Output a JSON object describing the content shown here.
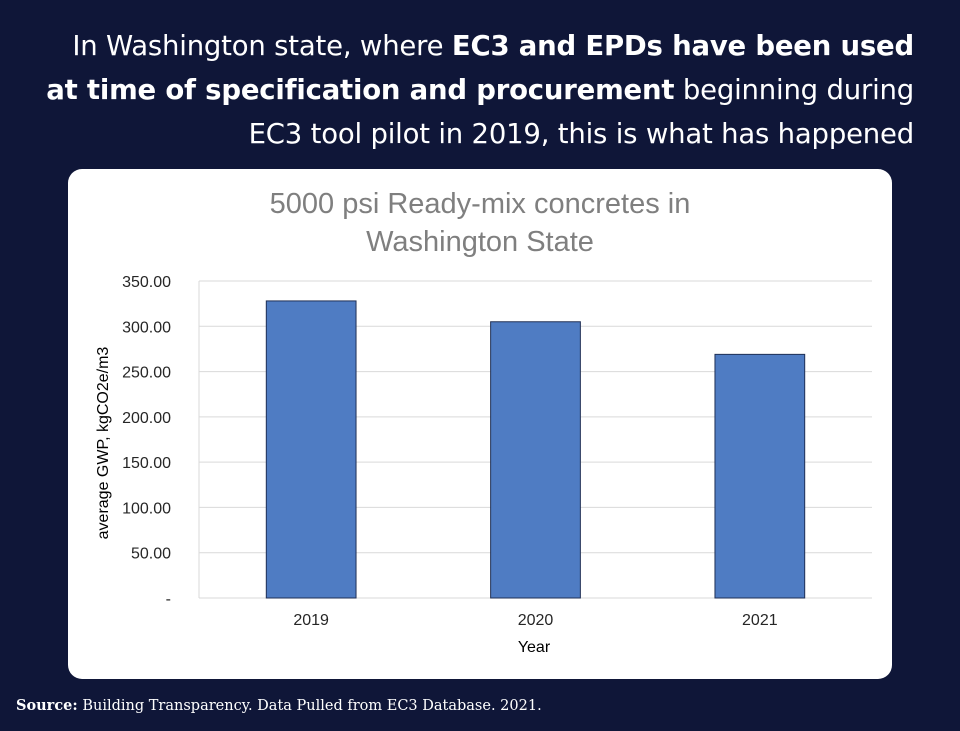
{
  "headline": {
    "part1": "In Washington state, where ",
    "bold1": "EC3 and EPDs have been used at time of specification and procurement",
    "part2": " beginning during EC3 tool pilot in 2019, this is what has happened"
  },
  "colors": {
    "background": "#0f1638",
    "bar_fill": "#4f7cc3",
    "bar_stroke": "#1f2f55",
    "gridline": "#d9d9d9",
    "title": "#7f7f7f"
  },
  "chart_data": {
    "type": "bar",
    "title_lines": [
      "5000 psi Ready-mix concretes in",
      "Washington State"
    ],
    "categories": [
      "2019",
      "2020",
      "2021"
    ],
    "values": [
      328,
      305,
      269
    ],
    "xlabel": "Year",
    "ylabel": "average GWP, kgCO2e/m3",
    "ylim": [
      0,
      350
    ],
    "yticks": [
      0,
      50,
      100,
      150,
      200,
      250,
      300,
      350
    ],
    "ytick_labels": [
      "-",
      "50.00",
      "100.00",
      "150.00",
      "200.00",
      "250.00",
      "300.00",
      "350.00"
    ],
    "grid": true,
    "legend": "none"
  },
  "source": {
    "label": "Source:",
    "text": "Building Transparency. Data Pulled from EC3 Database. 2021."
  }
}
